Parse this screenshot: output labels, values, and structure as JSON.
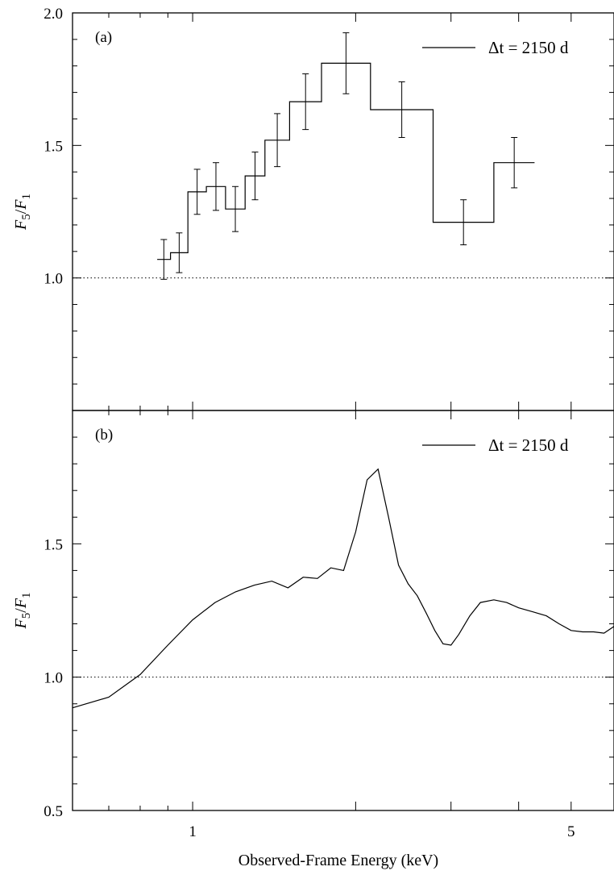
{
  "chart_data": [
    {
      "panel": "(a)",
      "type": "line",
      "style": "histogram step with error bars",
      "xscale": "log",
      "xlim": [
        0.6,
        6.0
      ],
      "ylim": [
        0.5,
        2.0
      ],
      "ylabel": "F5/F1",
      "yticks": [
        {
          "value": 1.0,
          "label": "1.0"
        },
        {
          "value": 1.5,
          "label": "1.5"
        },
        {
          "value": 2.0,
          "label": "2.0"
        }
      ],
      "reference_line": {
        "y": 1.0,
        "style": "dotted"
      },
      "legend": {
        "label": "Δt = 2150 d",
        "position": "top-right"
      },
      "bins": [
        {
          "x_lo": 0.86,
          "x_hi": 0.91,
          "y": 1.07,
          "err": 0.075
        },
        {
          "x_lo": 0.91,
          "x_hi": 0.98,
          "y": 1.095,
          "err": 0.075
        },
        {
          "x_lo": 0.98,
          "x_hi": 1.06,
          "y": 1.325,
          "err": 0.085
        },
        {
          "x_lo": 1.06,
          "x_hi": 1.15,
          "y": 1.345,
          "err": 0.09
        },
        {
          "x_lo": 1.15,
          "x_hi": 1.25,
          "y": 1.26,
          "err": 0.085
        },
        {
          "x_lo": 1.25,
          "x_hi": 1.36,
          "y": 1.385,
          "err": 0.09
        },
        {
          "x_lo": 1.36,
          "x_hi": 1.51,
          "y": 1.52,
          "err": 0.1
        },
        {
          "x_lo": 1.51,
          "x_hi": 1.73,
          "y": 1.665,
          "err": 0.105
        },
        {
          "x_lo": 1.73,
          "x_hi": 2.13,
          "y": 1.81,
          "err": 0.115
        },
        {
          "x_lo": 2.13,
          "x_hi": 2.78,
          "y": 1.635,
          "err": 0.105
        },
        {
          "x_lo": 2.78,
          "x_hi": 3.6,
          "y": 1.21,
          "err": 0.085
        },
        {
          "x_lo": 3.6,
          "x_hi": 4.28,
          "y": 1.435,
          "err": 0.095
        }
      ]
    },
    {
      "panel": "(b)",
      "type": "line",
      "xscale": "log",
      "xlim": [
        0.6,
        6.0
      ],
      "ylim": [
        0.5,
        2.0
      ],
      "xlabel": "Observed-Frame Energy (keV)",
      "ylabel": "F5/F1",
      "xticks": [
        {
          "value": 1,
          "label": "1"
        },
        {
          "value": 5,
          "label": "5"
        }
      ],
      "yticks": [
        {
          "value": 0.5,
          "label": "0.5"
        },
        {
          "value": 1.0,
          "label": "1.0"
        },
        {
          "value": 1.5,
          "label": "1.5"
        }
      ],
      "reference_line": {
        "y": 1.0,
        "style": "dotted"
      },
      "legend": {
        "label": "Δt = 2150 d",
        "position": "top-right"
      },
      "x": [
        0.6,
        0.7,
        0.8,
        0.9,
        1.0,
        1.1,
        1.2,
        1.3,
        1.4,
        1.5,
        1.6,
        1.7,
        1.8,
        1.9,
        2.0,
        2.1,
        2.2,
        2.3,
        2.4,
        2.5,
        2.6,
        2.7,
        2.8,
        2.9,
        3.0,
        3.1,
        3.25,
        3.4,
        3.6,
        3.8,
        4.0,
        4.25,
        4.5,
        4.75,
        5.0,
        5.25,
        5.5,
        5.75,
        6.0
      ],
      "y": [
        0.885,
        0.925,
        1.01,
        1.12,
        1.215,
        1.28,
        1.32,
        1.345,
        1.36,
        1.335,
        1.375,
        1.37,
        1.41,
        1.4,
        1.545,
        1.74,
        1.78,
        1.6,
        1.42,
        1.35,
        1.305,
        1.24,
        1.175,
        1.125,
        1.12,
        1.16,
        1.23,
        1.28,
        1.29,
        1.28,
        1.26,
        1.245,
        1.23,
        1.2,
        1.175,
        1.17,
        1.17,
        1.165,
        1.19
      ]
    }
  ]
}
